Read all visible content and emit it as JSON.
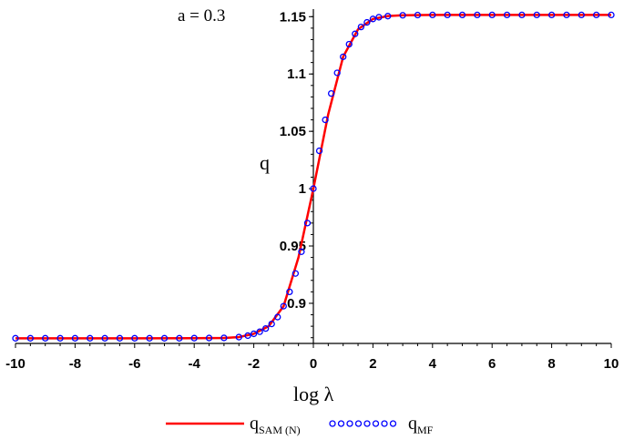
{
  "chart_data": {
    "type": "line",
    "annotation": "a = 0.3",
    "xlabel": "log λ",
    "ylabel": "q",
    "xlim": [
      -10,
      10
    ],
    "ylim": [
      0.865,
      1.155
    ],
    "x_ticks": [
      "-10",
      "-8",
      "-6",
      "-4",
      "-2",
      "0",
      "2",
      "4",
      "6",
      "8",
      "10"
    ],
    "y_ticks": [
      "0.9",
      "0.95",
      "1",
      "1.05",
      "1.1",
      "1.15"
    ],
    "grid": false,
    "legend_position": "bottom",
    "series": [
      {
        "name": "q_SAM (N)",
        "legend_main": "q",
        "legend_sub": "SAM (N)",
        "style": "solid line",
        "color": "#ff0000",
        "x": [
          -10,
          -8,
          -6,
          -4,
          -3,
          -2.5,
          -2,
          -1.5,
          -1,
          -0.5,
          0,
          0.5,
          1,
          1.5,
          2,
          2.5,
          3,
          4,
          6,
          8,
          10
        ],
        "y": [
          0.8695,
          0.8695,
          0.8695,
          0.8696,
          0.8698,
          0.8705,
          0.8734,
          0.88,
          0.8975,
          0.94,
          1.0,
          1.065,
          1.115,
          1.139,
          1.148,
          1.1505,
          1.1512,
          1.1515,
          1.1515,
          1.1515,
          1.1515
        ]
      },
      {
        "name": "q_MF",
        "legend_main": "q",
        "legend_sub": "MF",
        "style": "circle markers",
        "color": "#0000ff",
        "x": [
          -10,
          -9.5,
          -9,
          -8.5,
          -8,
          -7.5,
          -7,
          -6.5,
          -6,
          -5.5,
          -5,
          -4.5,
          -4,
          -3.5,
          -3,
          -2.5,
          -2.2,
          -2,
          -1.8,
          -1.6,
          -1.4,
          -1.2,
          -1,
          -0.8,
          -0.6,
          -0.4,
          -0.2,
          0,
          0.2,
          0.4,
          0.6,
          0.8,
          1,
          1.2,
          1.4,
          1.6,
          1.8,
          2,
          2.2,
          2.5,
          3,
          3.5,
          4,
          4.5,
          5,
          5.5,
          6,
          6.5,
          7,
          7.5,
          8,
          8.5,
          9,
          9.5,
          10
        ],
        "y": [
          0.8695,
          0.8695,
          0.8695,
          0.8695,
          0.8695,
          0.8695,
          0.8695,
          0.8695,
          0.8695,
          0.8695,
          0.8695,
          0.8695,
          0.8696,
          0.8697,
          0.8698,
          0.8705,
          0.8718,
          0.8734,
          0.8752,
          0.878,
          0.882,
          0.888,
          0.8975,
          0.91,
          0.926,
          0.945,
          0.97,
          1.0,
          1.033,
          1.06,
          1.083,
          1.101,
          1.115,
          1.126,
          1.135,
          1.141,
          1.145,
          1.148,
          1.1495,
          1.1505,
          1.1512,
          1.1514,
          1.1515,
          1.1515,
          1.1515,
          1.1515,
          1.1515,
          1.1515,
          1.1515,
          1.1515,
          1.1515,
          1.1515,
          1.1515,
          1.1515,
          1.1515
        ]
      }
    ]
  }
}
